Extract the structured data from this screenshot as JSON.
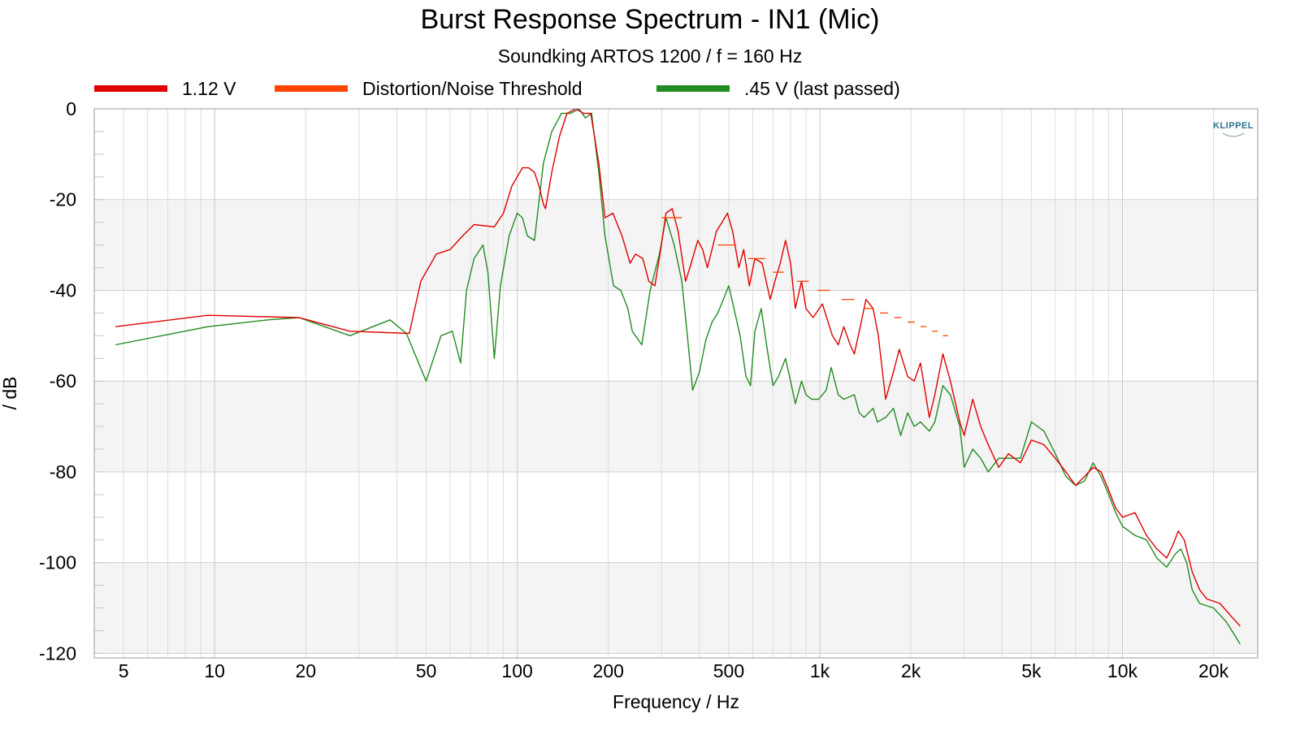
{
  "chart_data": {
    "type": "line",
    "title": "Burst Response Spectrum - IN1 (Mic)",
    "subtitle": "Soundking ARTOS 1200 / f = 160 Hz",
    "xlabel": "Frequency / Hz",
    "ylabel": "/ dB",
    "xscale": "log",
    "xlim": [
      4,
      28000
    ],
    "ylim": [
      -121,
      0
    ],
    "x_ticks": [
      {
        "value": 5,
        "label": "5"
      },
      {
        "value": 10,
        "label": "10"
      },
      {
        "value": 20,
        "label": "20"
      },
      {
        "value": 50,
        "label": "50"
      },
      {
        "value": 100,
        "label": "100"
      },
      {
        "value": 200,
        "label": "200"
      },
      {
        "value": 500,
        "label": "500"
      },
      {
        "value": 1000,
        "label": "1k"
      },
      {
        "value": 2000,
        "label": "2k"
      },
      {
        "value": 5000,
        "label": "5k"
      },
      {
        "value": 10000,
        "label": "10k"
      },
      {
        "value": 20000,
        "label": "20k"
      }
    ],
    "y_ticks": [
      {
        "value": 0,
        "label": "0"
      },
      {
        "value": -20,
        "label": "-20"
      },
      {
        "value": -40,
        "label": "-40"
      },
      {
        "value": -60,
        "label": "-60"
      },
      {
        "value": -80,
        "label": "-80"
      },
      {
        "value": -100,
        "label": "-100"
      },
      {
        "value": -120,
        "label": "-120"
      }
    ],
    "grid": true,
    "legend_position": "top",
    "logo_text": "KLIPPEL",
    "series": [
      {
        "name": "1.12 V",
        "color": "#e00000",
        "style": "line",
        "points": [
          [
            4.7,
            -48
          ],
          [
            9.5,
            -45.5
          ],
          [
            19,
            -46
          ],
          [
            28,
            -49
          ],
          [
            44,
            -49.5
          ],
          [
            48,
            -38
          ],
          [
            54,
            -32
          ],
          [
            60,
            -31
          ],
          [
            66,
            -28
          ],
          [
            72,
            -25.5
          ],
          [
            84,
            -26
          ],
          [
            90,
            -23
          ],
          [
            96,
            -17
          ],
          [
            104,
            -13
          ],
          [
            109,
            -13
          ],
          [
            114,
            -14
          ],
          [
            118,
            -17
          ],
          [
            122,
            -21
          ],
          [
            124,
            -22
          ],
          [
            130,
            -14
          ],
          [
            138,
            -6
          ],
          [
            146,
            -1
          ],
          [
            156,
            0
          ],
          [
            166,
            -1
          ],
          [
            175,
            -1
          ],
          [
            186,
            -12
          ],
          [
            195,
            -24
          ],
          [
            207,
            -23
          ],
          [
            222,
            -28
          ],
          [
            236,
            -34
          ],
          [
            246,
            -32
          ],
          [
            260,
            -33
          ],
          [
            272,
            -38
          ],
          [
            285,
            -39
          ],
          [
            298,
            -31
          ],
          [
            310,
            -23
          ],
          [
            325,
            -22
          ],
          [
            340,
            -27
          ],
          [
            360,
            -38
          ],
          [
            372,
            -35
          ],
          [
            395,
            -29
          ],
          [
            410,
            -31
          ],
          [
            425,
            -35
          ],
          [
            440,
            -31
          ],
          [
            455,
            -27
          ],
          [
            475,
            -25
          ],
          [
            495,
            -23
          ],
          [
            515,
            -27
          ],
          [
            540,
            -35
          ],
          [
            560,
            -31
          ],
          [
            585,
            -39
          ],
          [
            610,
            -33
          ],
          [
            645,
            -34
          ],
          [
            685,
            -42
          ],
          [
            710,
            -38
          ],
          [
            740,
            -34
          ],
          [
            770,
            -29
          ],
          [
            800,
            -34
          ],
          [
            830,
            -44
          ],
          [
            870,
            -38
          ],
          [
            900,
            -44
          ],
          [
            950,
            -46
          ],
          [
            1020,
            -43
          ],
          [
            1100,
            -50
          ],
          [
            1150,
            -52
          ],
          [
            1200,
            -48
          ],
          [
            1260,
            -52
          ],
          [
            1300,
            -54
          ],
          [
            1360,
            -48
          ],
          [
            1420,
            -42
          ],
          [
            1500,
            -44
          ],
          [
            1560,
            -50
          ],
          [
            1650,
            -64
          ],
          [
            1750,
            -58
          ],
          [
            1830,
            -53
          ],
          [
            1950,
            -59
          ],
          [
            2050,
            -60
          ],
          [
            2150,
            -56
          ],
          [
            2300,
            -68
          ],
          [
            2400,
            -63
          ],
          [
            2550,
            -54
          ],
          [
            2700,
            -60
          ],
          [
            2900,
            -69
          ],
          [
            3000,
            -72
          ],
          [
            3200,
            -64
          ],
          [
            3400,
            -70
          ],
          [
            3600,
            -74
          ],
          [
            3900,
            -79
          ],
          [
            4200,
            -76
          ],
          [
            4600,
            -78
          ],
          [
            5000,
            -73
          ],
          [
            5500,
            -74
          ],
          [
            6000,
            -77
          ],
          [
            6500,
            -80
          ],
          [
            7000,
            -83
          ],
          [
            7500,
            -81
          ],
          [
            8000,
            -79
          ],
          [
            8500,
            -80
          ],
          [
            9000,
            -84
          ],
          [
            9500,
            -88
          ],
          [
            10000,
            -90
          ],
          [
            11000,
            -89
          ],
          [
            12000,
            -94
          ],
          [
            13000,
            -97
          ],
          [
            14000,
            -99
          ],
          [
            14700,
            -96
          ],
          [
            15300,
            -93
          ],
          [
            16000,
            -95
          ],
          [
            17000,
            -102
          ],
          [
            18000,
            -106
          ],
          [
            19000,
            -108
          ],
          [
            21000,
            -109
          ],
          [
            23000,
            -112
          ],
          [
            24500,
            -114
          ]
        ]
      },
      {
        "name": "Distortion/Noise Threshold",
        "color": "#ff4500",
        "style": "segments",
        "points": [
          [
            300,
            -24
          ],
          [
            350,
            -24
          ],
          [
            460,
            -30
          ],
          [
            530,
            -30
          ],
          [
            580,
            -33
          ],
          [
            660,
            -33
          ],
          [
            700,
            -36
          ],
          [
            760,
            -36
          ],
          [
            840,
            -38
          ],
          [
            920,
            -38
          ],
          [
            980,
            -40
          ],
          [
            1080,
            -40
          ],
          [
            1180,
            -42
          ],
          [
            1300,
            -42
          ],
          [
            1400,
            -44
          ],
          [
            1500,
            -44
          ],
          [
            1580,
            -45
          ],
          [
            1680,
            -45
          ],
          [
            1760,
            -46
          ],
          [
            1860,
            -46
          ],
          [
            1950,
            -47
          ],
          [
            2060,
            -47
          ],
          [
            2150,
            -48
          ],
          [
            2250,
            -48
          ],
          [
            2350,
            -49
          ],
          [
            2450,
            -49
          ],
          [
            2550,
            -50
          ],
          [
            2650,
            -50
          ]
        ]
      },
      {
        "name": ".45 V (last passed)",
        "color": "#228b22",
        "style": "line",
        "points": [
          [
            4.7,
            -52
          ],
          [
            9.5,
            -48
          ],
          [
            15,
            -46.5
          ],
          [
            19,
            -46
          ],
          [
            28,
            -50
          ],
          [
            38,
            -46.5
          ],
          [
            43,
            -49.5
          ],
          [
            50,
            -60
          ],
          [
            56,
            -50
          ],
          [
            61,
            -49
          ],
          [
            65,
            -56
          ],
          [
            68,
            -40
          ],
          [
            72,
            -33
          ],
          [
            77,
            -30
          ],
          [
            80,
            -36
          ],
          [
            84,
            -55
          ],
          [
            88,
            -39
          ],
          [
            94,
            -28
          ],
          [
            100,
            -23
          ],
          [
            104,
            -24
          ],
          [
            108,
            -28
          ],
          [
            114,
            -29
          ],
          [
            122,
            -12
          ],
          [
            130,
            -5
          ],
          [
            140,
            -1
          ],
          [
            150,
            -1
          ],
          [
            160,
            0
          ],
          [
            168,
            -2
          ],
          [
            176,
            -1
          ],
          [
            186,
            -14
          ],
          [
            195,
            -28
          ],
          [
            208,
            -39
          ],
          [
            220,
            -40
          ],
          [
            232,
            -44
          ],
          [
            240,
            -49
          ],
          [
            258,
            -52
          ],
          [
            275,
            -40
          ],
          [
            295,
            -32
          ],
          [
            310,
            -24
          ],
          [
            330,
            -30
          ],
          [
            350,
            -38
          ],
          [
            365,
            -50
          ],
          [
            380,
            -62
          ],
          [
            400,
            -58
          ],
          [
            420,
            -51
          ],
          [
            440,
            -47
          ],
          [
            460,
            -45
          ],
          [
            480,
            -42
          ],
          [
            500,
            -39
          ],
          [
            520,
            -44
          ],
          [
            545,
            -50
          ],
          [
            570,
            -59
          ],
          [
            590,
            -61
          ],
          [
            610,
            -49
          ],
          [
            640,
            -44
          ],
          [
            670,
            -53
          ],
          [
            700,
            -61
          ],
          [
            730,
            -59
          ],
          [
            770,
            -55
          ],
          [
            800,
            -60
          ],
          [
            830,
            -65
          ],
          [
            870,
            -60
          ],
          [
            900,
            -63
          ],
          [
            940,
            -64
          ],
          [
            990,
            -64
          ],
          [
            1050,
            -62
          ],
          [
            1090,
            -57
          ],
          [
            1150,
            -63
          ],
          [
            1200,
            -64
          ],
          [
            1300,
            -63
          ],
          [
            1350,
            -67
          ],
          [
            1400,
            -68
          ],
          [
            1500,
            -66
          ],
          [
            1550,
            -69
          ],
          [
            1650,
            -68
          ],
          [
            1750,
            -66
          ],
          [
            1850,
            -72
          ],
          [
            1950,
            -67
          ],
          [
            2050,
            -70
          ],
          [
            2150,
            -69
          ],
          [
            2300,
            -71
          ],
          [
            2400,
            -69
          ],
          [
            2550,
            -61
          ],
          [
            2700,
            -63
          ],
          [
            2900,
            -70
          ],
          [
            3000,
            -79
          ],
          [
            3200,
            -75
          ],
          [
            3400,
            -77
          ],
          [
            3600,
            -80
          ],
          [
            3900,
            -77
          ],
          [
            4200,
            -77
          ],
          [
            4600,
            -77
          ],
          [
            5000,
            -69
          ],
          [
            5500,
            -71
          ],
          [
            6000,
            -76
          ],
          [
            6500,
            -81
          ],
          [
            7000,
            -83
          ],
          [
            7500,
            -82
          ],
          [
            8000,
            -78
          ],
          [
            8500,
            -81
          ],
          [
            9000,
            -85
          ],
          [
            9500,
            -89
          ],
          [
            10000,
            -92
          ],
          [
            11000,
            -94
          ],
          [
            12000,
            -95
          ],
          [
            13000,
            -99
          ],
          [
            14000,
            -101
          ],
          [
            15000,
            -98
          ],
          [
            15600,
            -97
          ],
          [
            16300,
            -100
          ],
          [
            17000,
            -106
          ],
          [
            18000,
            -109
          ],
          [
            20000,
            -110
          ],
          [
            22000,
            -113
          ],
          [
            23500,
            -116
          ],
          [
            24500,
            -118
          ]
        ]
      }
    ]
  }
}
